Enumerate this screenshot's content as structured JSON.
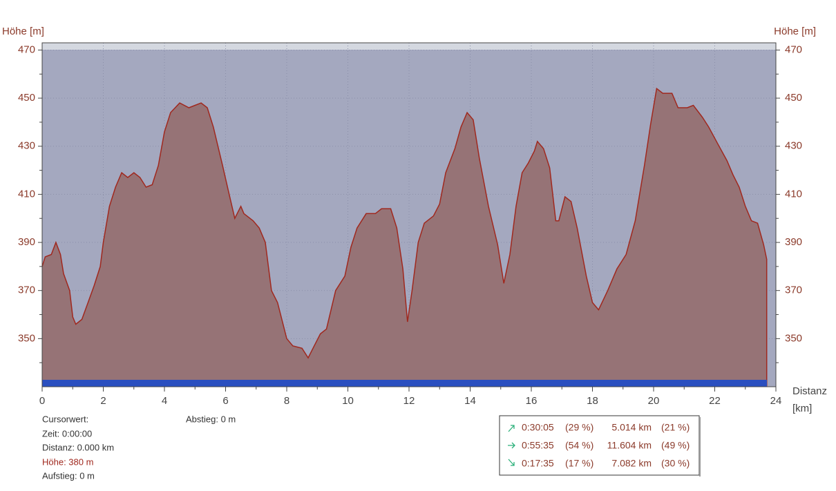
{
  "chart_data": {
    "type": "area",
    "ylabel": "Höhe [m]",
    "xlabel": [
      "Distanz",
      "[km]"
    ],
    "x": [
      0,
      0.1,
      0.3,
      0.45,
      0.6,
      0.7,
      0.9,
      1.0,
      1.1,
      1.3,
      1.5,
      1.7,
      1.9,
      2.0,
      2.2,
      2.4,
      2.6,
      2.8,
      3.0,
      3.2,
      3.4,
      3.6,
      3.8,
      4.0,
      4.2,
      4.5,
      4.8,
      5.0,
      5.2,
      5.4,
      5.6,
      5.9,
      6.1,
      6.3,
      6.5,
      6.6,
      6.9,
      7.1,
      7.3,
      7.5,
      7.7,
      8.0,
      8.2,
      8.5,
      8.7,
      8.9,
      9.1,
      9.3,
      9.6,
      9.9,
      10.1,
      10.3,
      10.6,
      10.9,
      11.1,
      11.4,
      11.6,
      11.8,
      11.95,
      12.1,
      12.3,
      12.5,
      12.8,
      13.0,
      13.2,
      13.5,
      13.7,
      13.9,
      14.1,
      14.3,
      14.6,
      14.9,
      15.1,
      15.3,
      15.5,
      15.7,
      15.9,
      16.1,
      16.2,
      16.4,
      16.6,
      16.8,
      16.9,
      17.1,
      17.3,
      17.5,
      17.8,
      18.0,
      18.2,
      18.5,
      18.8,
      19.1,
      19.4,
      19.7,
      19.9,
      20.1,
      20.3,
      20.6,
      20.8,
      21.1,
      21.3,
      21.6,
      21.8,
      22.1,
      22.4,
      22.6,
      22.8,
      23.0,
      23.2,
      23.4,
      23.6,
      23.7
    ],
    "values": [
      380,
      384,
      385,
      390,
      385,
      377,
      370,
      359,
      356,
      358,
      365,
      372,
      380,
      390,
      405,
      413,
      419,
      417,
      419,
      417,
      413,
      414,
      422,
      436,
      444,
      448,
      446,
      447,
      448,
      446,
      438,
      422,
      411,
      400,
      405,
      402,
      399,
      396,
      390,
      370,
      365,
      350,
      347,
      346,
      342,
      347,
      352,
      354,
      370,
      376,
      388,
      396,
      402,
      402,
      404,
      404,
      396,
      379,
      357,
      370,
      390,
      398,
      401,
      406,
      419,
      429,
      438,
      444,
      441,
      425,
      405,
      389,
      373,
      385,
      405,
      419,
      423,
      428,
      432,
      429,
      421,
      399,
      399,
      409,
      407,
      396,
      376,
      365,
      362,
      370,
      379,
      385,
      399,
      422,
      439,
      454,
      452,
      452,
      446,
      446,
      447,
      442,
      438,
      431,
      424,
      418,
      413,
      405,
      399,
      398,
      389,
      383
    ],
    "color": "#967376",
    "line_color": "#a0281e",
    "xlim": [
      0,
      24
    ],
    "xticks": [
      0,
      2,
      4,
      6,
      8,
      10,
      12,
      14,
      16,
      18,
      20,
      22,
      24
    ],
    "xticks_minor": [
      1,
      3,
      5,
      7,
      9,
      11,
      13,
      15,
      17,
      19,
      21,
      23
    ],
    "ylim": [
      330,
      473
    ],
    "yticks": [
      350,
      370,
      390,
      410,
      430,
      450,
      470
    ],
    "yticks_minor": [
      340,
      360,
      380,
      400,
      420,
      440,
      460
    ],
    "grid": true
  },
  "cursor": {
    "title": "Cursorwert:",
    "zeit": "Zeit:  0:00:00",
    "distanz": "Distanz:  0.000 km",
    "hoehe": "Höhe:  380 m",
    "aufstieg": "Aufstieg:  0 m",
    "abstieg": "Abstieg:  0 m"
  },
  "summary": [
    {
      "time": "0:30:05",
      "time_pct": "(29 %)",
      "dist": "5.014 km",
      "dist_pct": "(21 %)"
    },
    {
      "time": "0:55:35",
      "time_pct": "(54 %)",
      "dist": "11.604 km",
      "dist_pct": "(49 %)"
    },
    {
      "time": "0:17:35",
      "time_pct": "(17 %)",
      "dist": "7.082 km",
      "dist_pct": "(30 %)"
    }
  ]
}
